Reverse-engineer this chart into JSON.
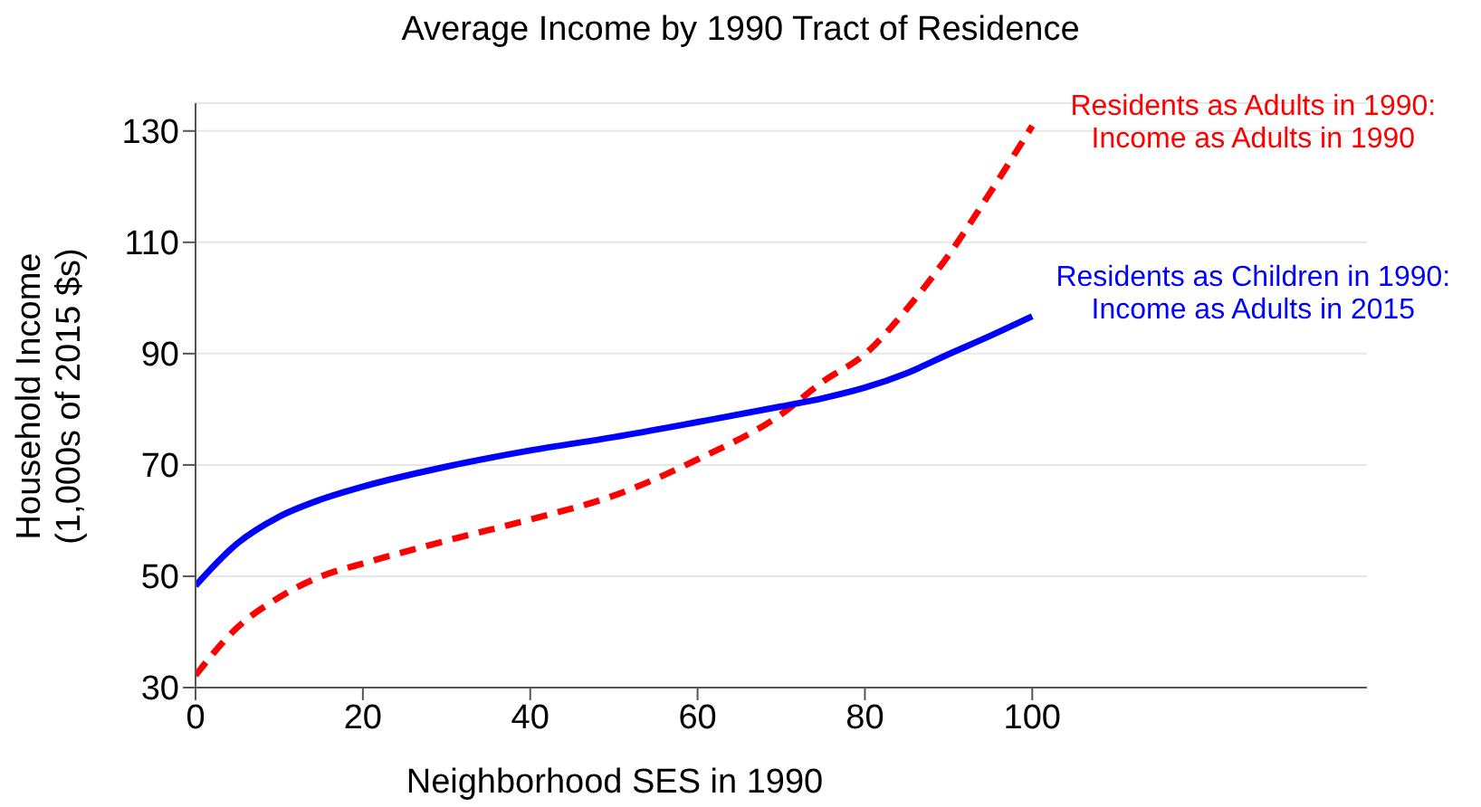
{
  "chart_data": {
    "type": "line",
    "title": "Average Income by 1990 Tract of Residence",
    "xlabel": "Neighborhood SES in 1990",
    "ylabel": "Household Income\n(1,000s of 2015 $s)",
    "x": [
      0,
      5,
      10,
      15,
      20,
      30,
      40,
      50,
      60,
      70,
      75,
      80,
      85,
      90,
      95,
      100
    ],
    "series": [
      {
        "name": "Residents as Adults in 1990:\nIncome as Adults in 1990",
        "color": "#ff0000",
        "line_style": "dashed",
        "values": [
          32.2,
          40.8,
          46.2,
          50.0,
          52.3,
          56.4,
          60.2,
          64.5,
          71.0,
          79.1,
          85.0,
          89.9,
          98.0,
          107.7,
          119.0,
          130.9
        ]
      },
      {
        "name": "Residents as Children in 1990:\nIncome as Adults in 2015",
        "color": "#0000ff",
        "line_style": "solid",
        "values": [
          48.3,
          55.9,
          60.7,
          63.8,
          66.1,
          69.7,
          72.6,
          75.0,
          77.7,
          80.5,
          82.0,
          83.9,
          86.5,
          89.9,
          93.2,
          96.7
        ]
      }
    ],
    "xlim": [
      0,
      140
    ],
    "xticks": [
      0,
      20,
      40,
      60,
      80,
      100
    ],
    "ylim": [
      30,
      135
    ],
    "yticks": [
      30,
      50,
      70,
      90,
      110,
      130
    ],
    "grid": "y",
    "legend": false,
    "marker": "none"
  }
}
